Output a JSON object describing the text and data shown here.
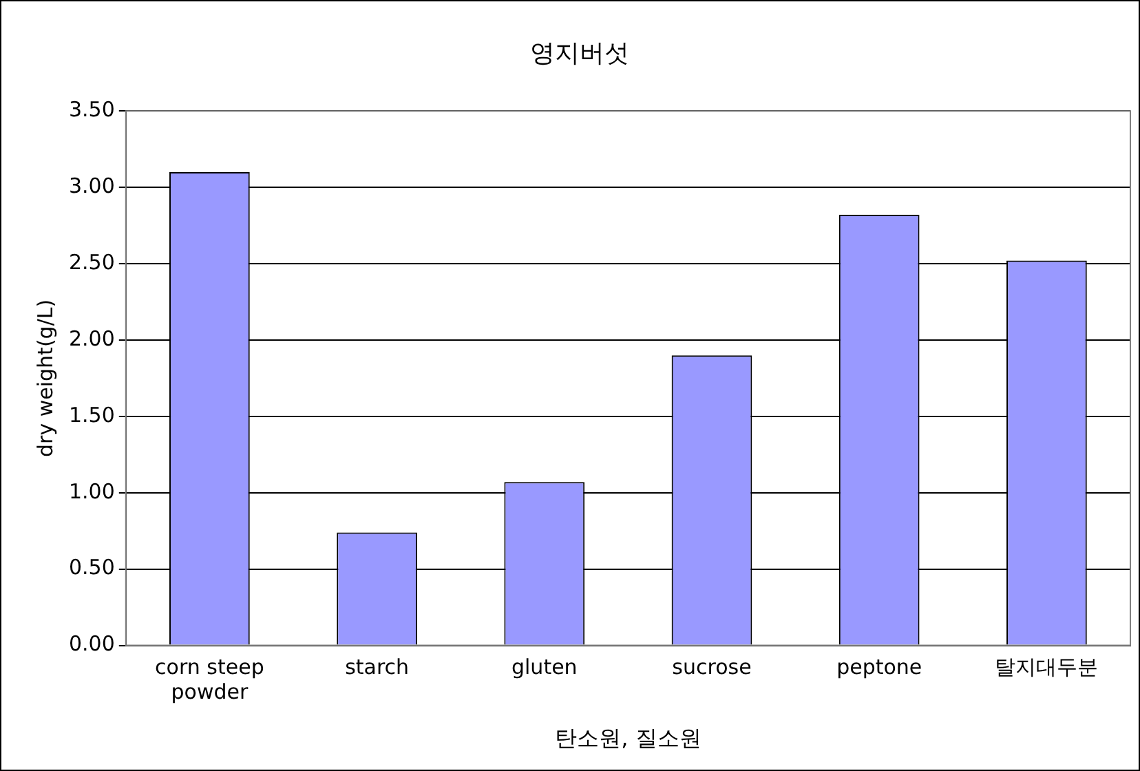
{
  "chart_data": {
    "type": "bar",
    "title": "영지버섯",
    "xlabel": "탄소원, 질소원",
    "ylabel": "dry weight(g/L)",
    "categories": [
      "corn steep powder",
      "starch",
      "gluten",
      "sucrose",
      "peptone",
      "탈지대두분"
    ],
    "values": [
      3.1,
      0.74,
      1.07,
      1.9,
      2.82,
      2.52
    ],
    "color": "#9999ff",
    "ylim": [
      0,
      3.5
    ],
    "yticks": [
      {
        "value": 0,
        "label": "0.00"
      },
      {
        "value": 0.5,
        "label": "0.50"
      },
      {
        "value": 1,
        "label": "1.00"
      },
      {
        "value": 1.5,
        "label": "1.50"
      },
      {
        "value": 2,
        "label": "2.00"
      },
      {
        "value": 2.5,
        "label": "2.50"
      },
      {
        "value": 3,
        "label": "3.00"
      },
      {
        "value": 3.5,
        "label": "3.50"
      }
    ],
    "grid": "y",
    "legend": false
  }
}
